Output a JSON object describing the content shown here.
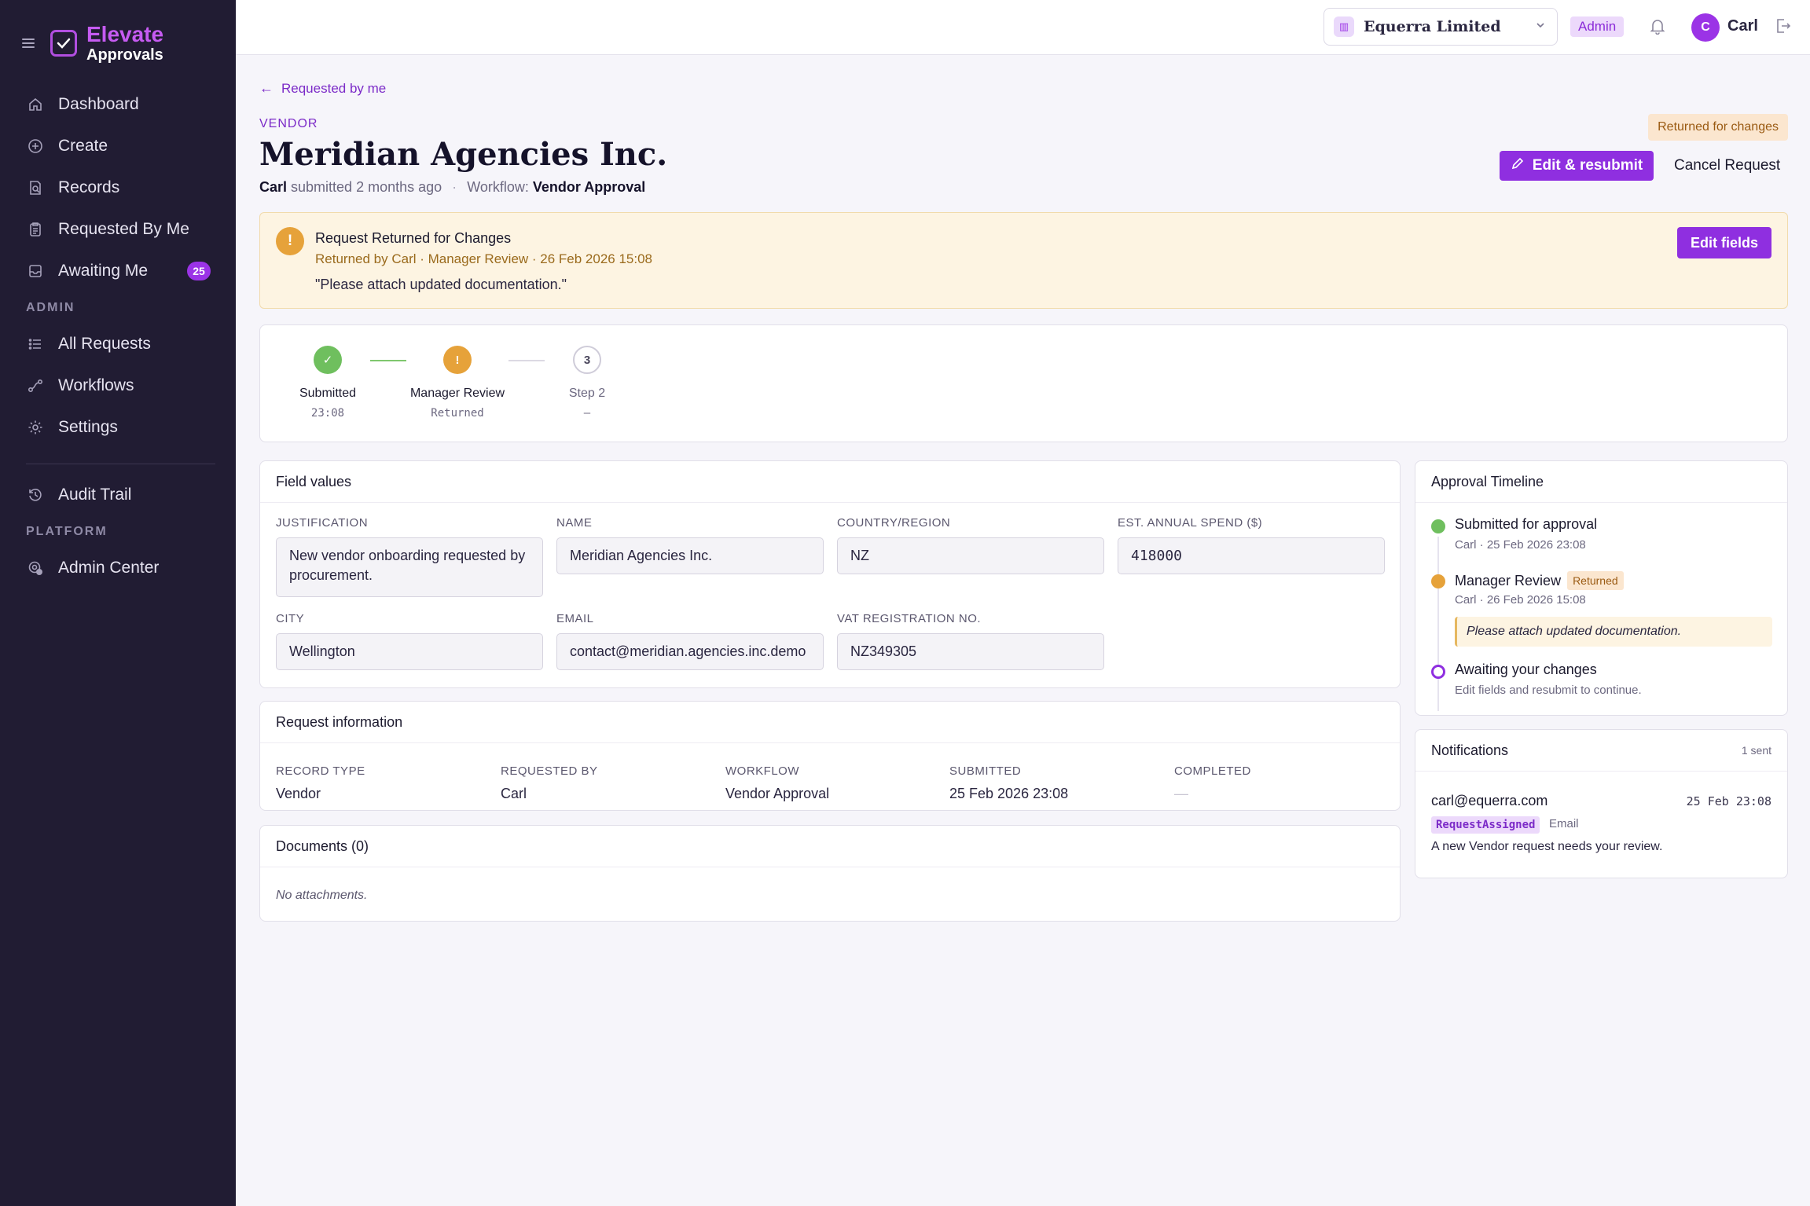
{
  "brand": {
    "name": "Elevate",
    "sub": "Approvals"
  },
  "sidebar": {
    "items": [
      {
        "label": "Dashboard",
        "icon": "home-icon"
      },
      {
        "label": "Create",
        "icon": "plus-circle-icon"
      },
      {
        "label": "Records",
        "icon": "search-doc-icon"
      },
      {
        "label": "Requested By Me",
        "icon": "clipboard-icon"
      },
      {
        "label": "Awaiting Me",
        "icon": "inbox-icon",
        "badge": "25"
      }
    ],
    "admin_section": "ADMIN",
    "admin_items": [
      {
        "label": "All Requests",
        "icon": "list-icon"
      },
      {
        "label": "Workflows",
        "icon": "workflow-icon"
      },
      {
        "label": "Settings",
        "icon": "gear-icon"
      }
    ],
    "audit_item": {
      "label": "Audit Trail",
      "icon": "history-icon"
    },
    "platform_section": "PLATFORM",
    "platform_items": [
      {
        "label": "Admin Center",
        "icon": "admin-gear-icon"
      }
    ]
  },
  "topbar": {
    "org": "Equerra Limited",
    "role": "Admin",
    "avatar_initial": "C",
    "user": "Carl"
  },
  "header": {
    "back_label": "Requested by me",
    "eyebrow": "VENDOR",
    "title": "Meridian Agencies Inc.",
    "submitter": "Carl",
    "submitted_text": "submitted 2 months ago",
    "dot": "·",
    "workflow_label": "Workflow:",
    "workflow": "Vendor Approval",
    "status": "Returned for changes",
    "primary_action": "Edit & resubmit",
    "secondary_action": "Cancel Request"
  },
  "alert": {
    "icon_glyph": "!",
    "title": "Request Returned for Changes",
    "sub": "Returned by Carl · Manager Review · 26 Feb 2026 15:08",
    "quote": "\"Please attach updated documentation.\"",
    "action": "Edit fields"
  },
  "steps": [
    {
      "glyph": "✓",
      "label": "Submitted",
      "sub": "23:08",
      "state": "done"
    },
    {
      "glyph": "!",
      "label": "Manager Review",
      "sub": "Returned",
      "state": "returned"
    },
    {
      "glyph": "3",
      "label": "Step 2",
      "sub": "–",
      "state": "pending"
    }
  ],
  "fields": {
    "title": "Field values",
    "items": [
      {
        "label": "JUSTIFICATION",
        "value": "New vendor onboarding requested by procurement."
      },
      {
        "label": "NAME",
        "value": "Meridian Agencies Inc."
      },
      {
        "label": "COUNTRY/REGION",
        "value": "NZ"
      },
      {
        "label": "EST. ANNUAL SPEND ($)",
        "value": "418000"
      },
      {
        "label": "CITY",
        "value": "Wellington"
      },
      {
        "label": "EMAIL",
        "value": "contact@meridian.agencies.inc.demo"
      },
      {
        "label": "VAT REGISTRATION NO.",
        "value": "NZ349305"
      }
    ]
  },
  "request_info": {
    "title": "Request information",
    "items": [
      {
        "label": "RECORD TYPE",
        "value": "Vendor"
      },
      {
        "label": "REQUESTED BY",
        "value": "Carl"
      },
      {
        "label": "WORKFLOW",
        "value": "Vendor Approval"
      },
      {
        "label": "SUBMITTED",
        "value": "25 Feb 2026 23:08"
      },
      {
        "label": "COMPLETED",
        "value": "—"
      }
    ]
  },
  "documents": {
    "title": "Documents (0)",
    "empty": "No attachments."
  },
  "timeline": {
    "title": "Approval Timeline",
    "items": [
      {
        "title": "Submitted for approval",
        "sub": "Carl · 25 Feb 2026 23:08"
      },
      {
        "title": "Manager Review",
        "badge": "Returned",
        "sub": "Carl · 26 Feb 2026 15:08",
        "note": "Please attach updated documentation."
      },
      {
        "title": "Awaiting your changes",
        "sub": "Edit fields and resubmit to continue."
      }
    ]
  },
  "notifications": {
    "title": "Notifications",
    "count": "1 sent",
    "items": [
      {
        "to": "carl@equerra.com",
        "time": "25 Feb 23:08",
        "tag": "RequestAssigned",
        "channel": "Email",
        "message": "A new Vendor request needs your review."
      }
    ]
  },
  "colors": {
    "sidebar_bg": "#211c33",
    "accent": "#8f2fe0",
    "success": "#6fbf5e",
    "warning": "#e6a23a"
  }
}
